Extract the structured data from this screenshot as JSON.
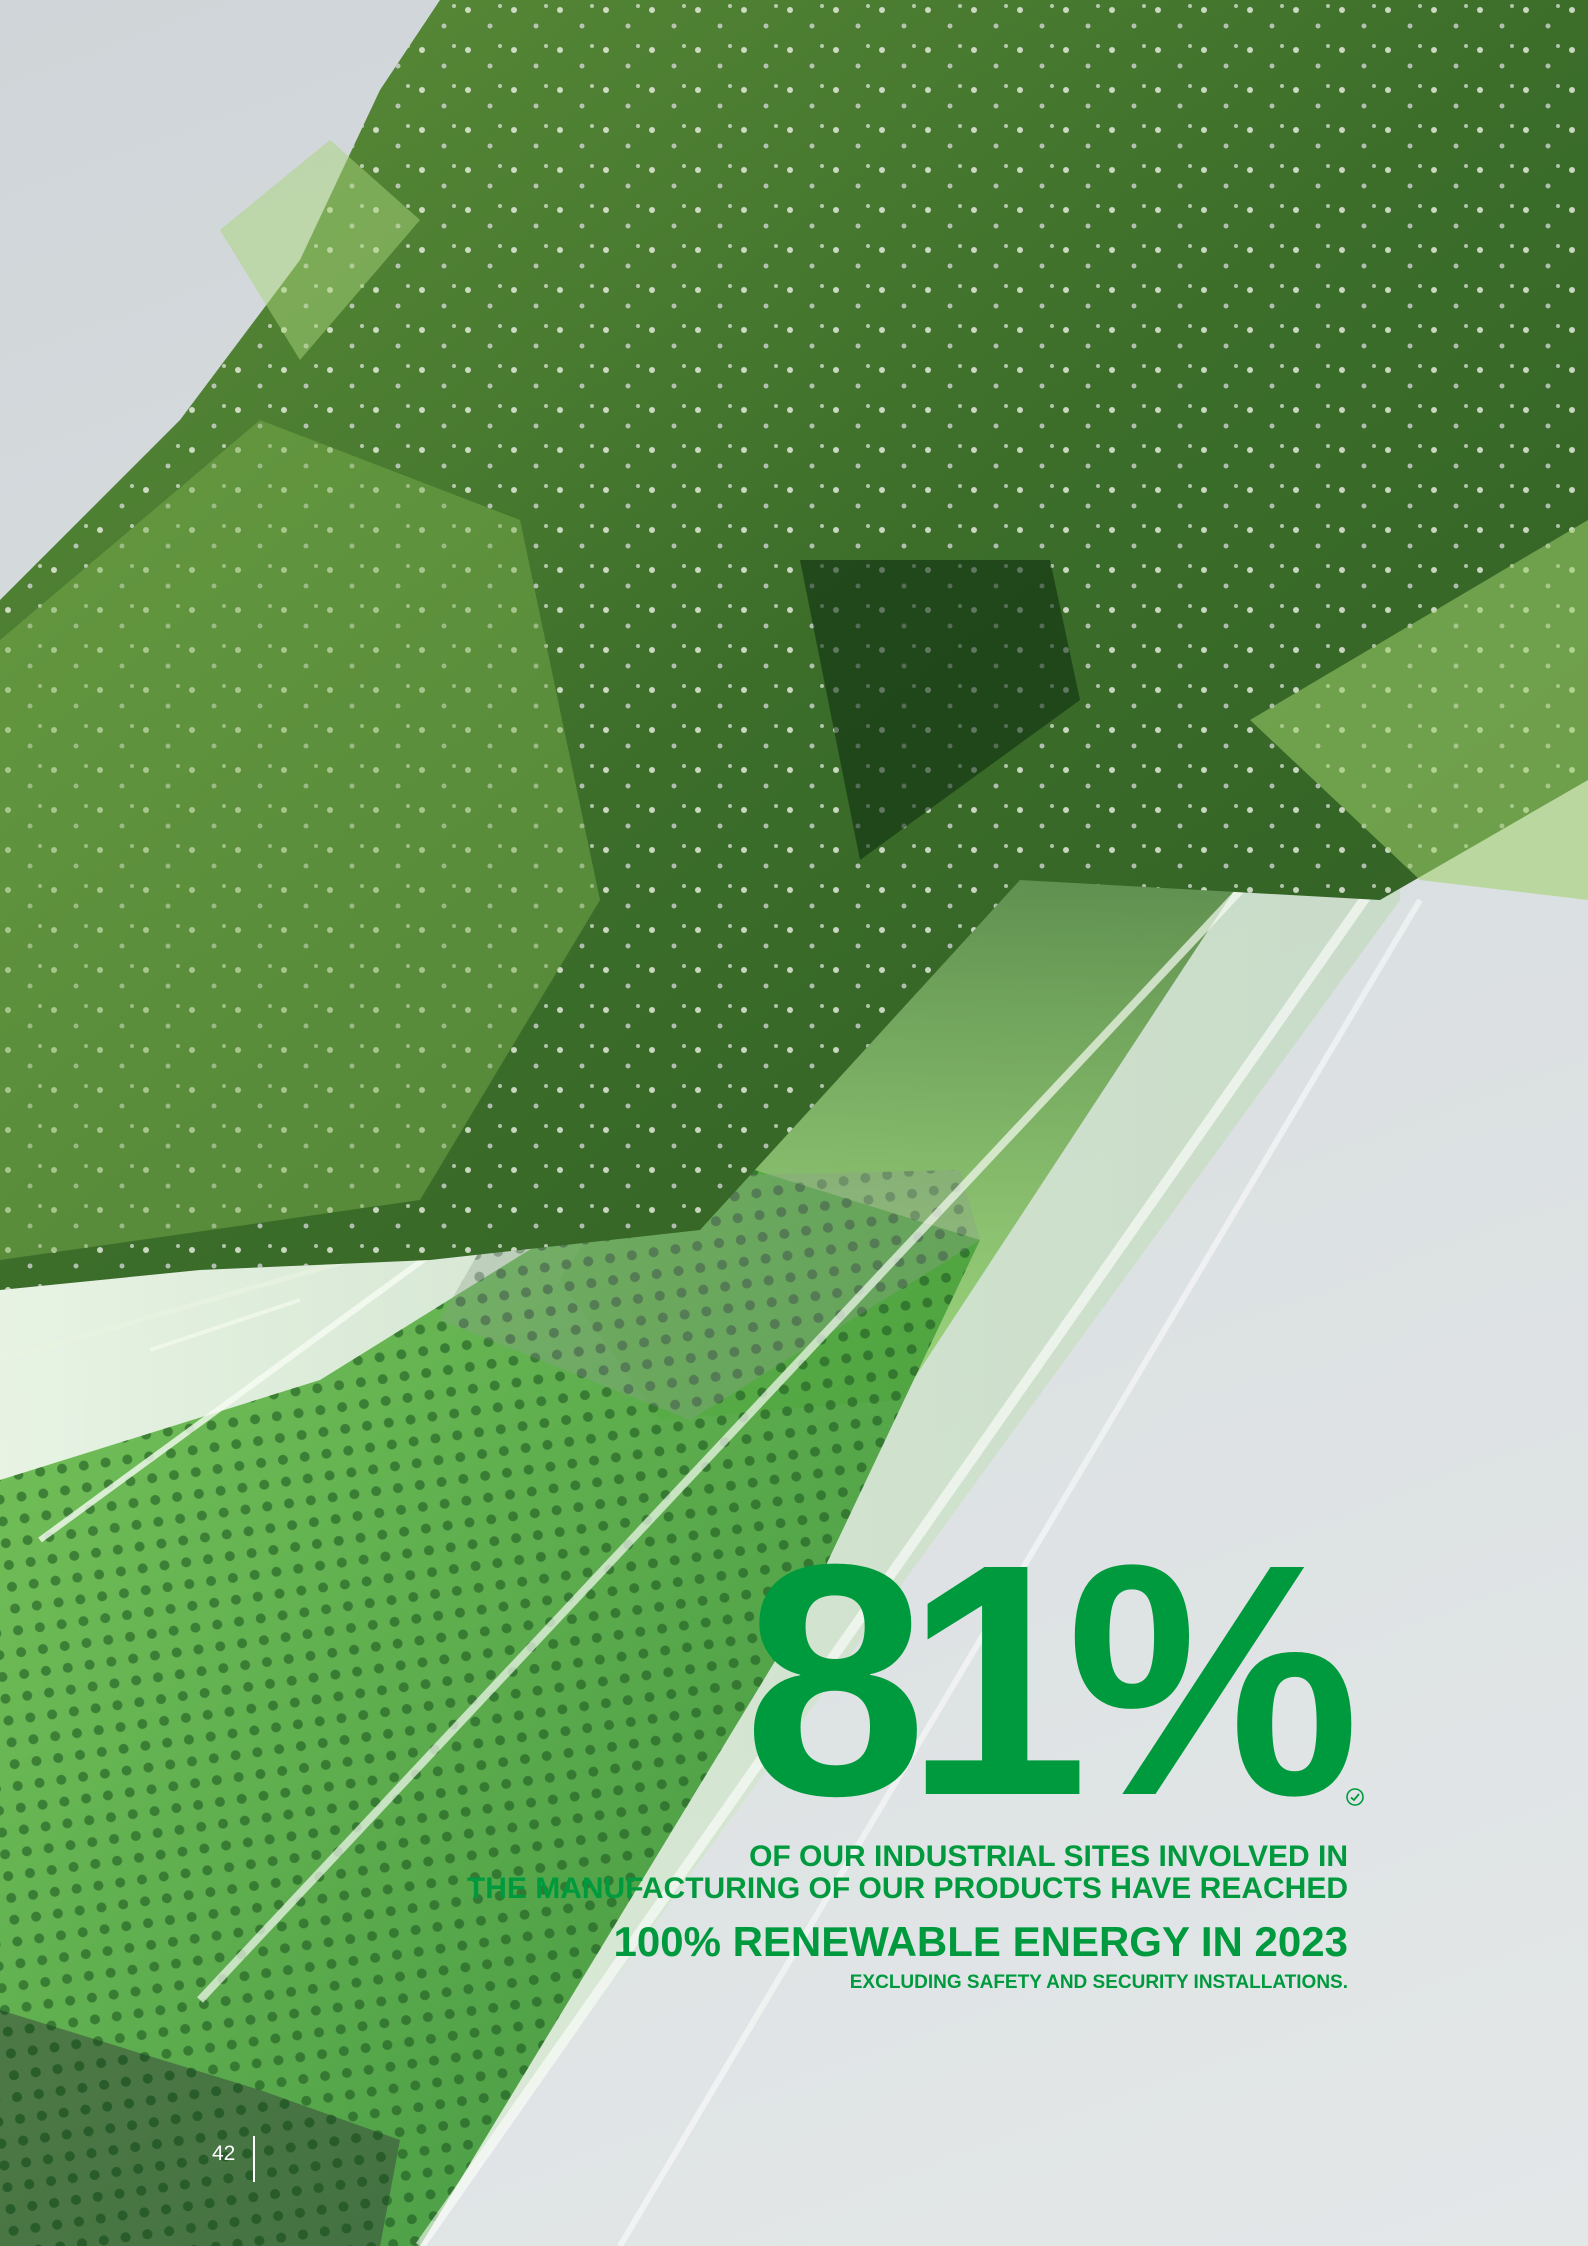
{
  "colors": {
    "brand_green": "#009a3e",
    "sky": "#d9dee0",
    "foliage_dark": "#2e5a22",
    "foliage_light": "#7fbf4a",
    "tray_green": "#3f9e3a"
  },
  "headline": {
    "value": "81%",
    "line1": "OF OUR INDUSTRIAL SITES INVOLVED IN",
    "line2": "THE MANUFACTURING OF OUR PRODUCTS HAVE REACHED",
    "line3": "100% RENEWABLE ENERGY IN 2023",
    "line4": "EXCLUDING SAFETY AND SECURITY INSTALLATIONS."
  },
  "icons": {
    "verified": "check-circle-icon"
  },
  "footer": {
    "page_number": "42"
  }
}
